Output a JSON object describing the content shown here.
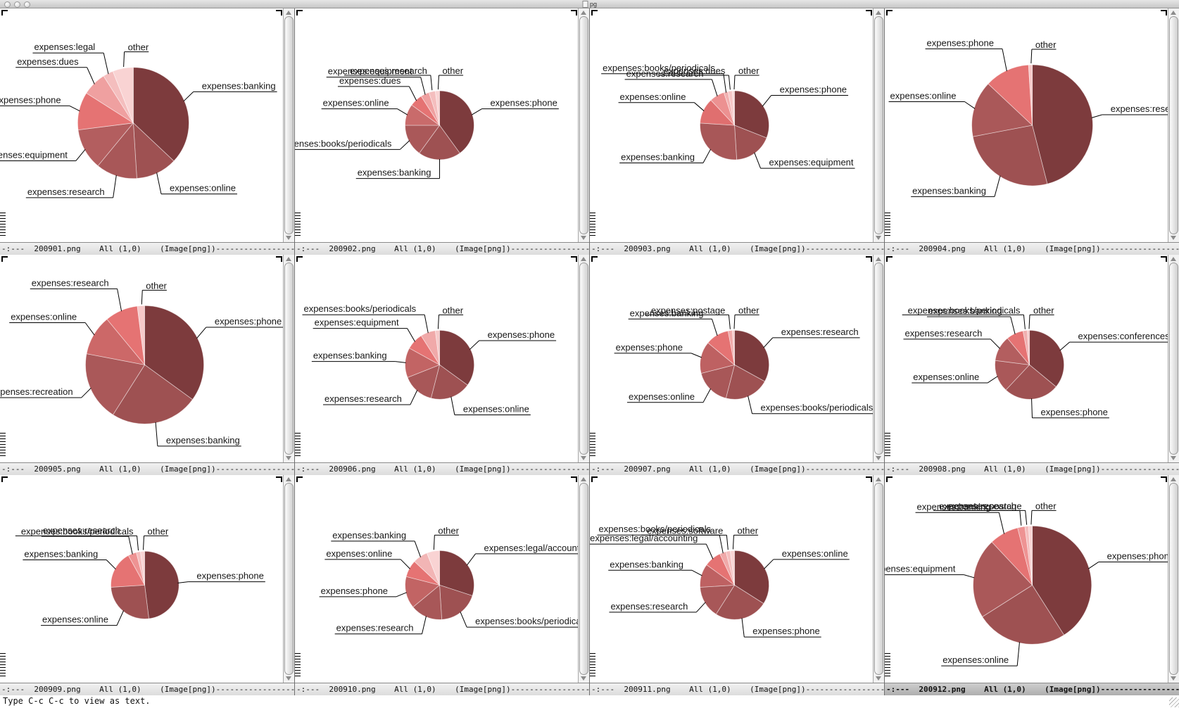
{
  "window": {
    "title": "pg"
  },
  "modeline": {
    "prefix": "-:---",
    "position": "All (1,0)",
    "mode": "(Image[png])",
    "dash_fill": "--------------------"
  },
  "minibuffer": {
    "message": "Type C-c C-c to view as text."
  },
  "icons": {
    "scrollbar_up": "triangle-up",
    "scrollbar_down": "triangle-down",
    "resize_grip": "diagonal-lines",
    "window_buttons": "gray-circles",
    "fringe_top": "corner-mark",
    "fringe_bottom": "dashed-ladder"
  },
  "panes": [
    {
      "file": "200901.png",
      "active": false
    },
    {
      "file": "200902.png",
      "active": false
    },
    {
      "file": "200903.png",
      "active": false
    },
    {
      "file": "200904.png",
      "active": false
    },
    {
      "file": "200905.png",
      "active": false
    },
    {
      "file": "200906.png",
      "active": false
    },
    {
      "file": "200907.png",
      "active": false
    },
    {
      "file": "200908.png",
      "active": false
    },
    {
      "file": "200909.png",
      "active": false
    },
    {
      "file": "200910.png",
      "active": false
    },
    {
      "file": "200911.png",
      "active": false
    },
    {
      "file": "200912.png",
      "active": true
    }
  ],
  "chart_data": [
    {
      "type": "pie",
      "title": "200901.png",
      "cx": 0.47,
      "cy": 0.49,
      "r": 79,
      "direction": "clockwise",
      "start": "top",
      "items": [
        {
          "label": "expenses:banking",
          "value": 37,
          "color": "#7D3B3D"
        },
        {
          "label": "expenses:online",
          "value": 12,
          "color": "#9E5152"
        },
        {
          "label": "expenses:research",
          "value": 12,
          "color": "#A85758"
        },
        {
          "label": "expenses:equipment",
          "value": 12,
          "color": "#B35E5F"
        },
        {
          "label": "expenses:phone",
          "value": 11,
          "color": "#E57373"
        },
        {
          "label": "expenses:dues",
          "value": 7,
          "color": "#EFA0A0"
        },
        {
          "label": "expenses:legal",
          "value": 3,
          "color": "#F4BEBE"
        },
        {
          "label": "other",
          "value": 6,
          "color": "#F9D3D3"
        }
      ]
    },
    {
      "type": "pie",
      "title": "200902.png",
      "cx": 0.51,
      "cy": 0.5,
      "r": 49,
      "direction": "clockwise",
      "start": "top",
      "items": [
        {
          "label": "expenses:phone",
          "value": 40,
          "color": "#7D3B3D"
        },
        {
          "label": "expenses:banking",
          "value": 20,
          "color": "#9E5152"
        },
        {
          "label": "expenses:books/periodicals",
          "value": 15,
          "color": "#AA5859"
        },
        {
          "label": "expenses:online",
          "value": 10,
          "color": "#C96B6B"
        },
        {
          "label": "expenses:dues",
          "value": 6,
          "color": "#E57373"
        },
        {
          "label": "expenses:equipment",
          "value": 4,
          "color": "#EFA0A0"
        },
        {
          "label": "expenses:research",
          "value": 3,
          "color": "#F4BEBE"
        },
        {
          "label": "other",
          "value": 2,
          "color": "#F9D3D3"
        }
      ]
    },
    {
      "type": "pie",
      "title": "200903.png",
      "cx": 0.51,
      "cy": 0.5,
      "r": 49,
      "direction": "clockwise",
      "start": "top",
      "items": [
        {
          "label": "expenses:phone",
          "value": 31,
          "color": "#7D3B3D"
        },
        {
          "label": "expenses:equipment",
          "value": 18,
          "color": "#9E5152"
        },
        {
          "label": "expenses:banking",
          "value": 27,
          "color": "#A85758"
        },
        {
          "label": "expenses:online",
          "value": 12,
          "color": "#E06F6F"
        },
        {
          "label": "expenses:research",
          "value": 7,
          "color": "#EC9191"
        },
        {
          "label": "expenses:books/periodicals",
          "value": 2,
          "color": "#F2B1B1"
        },
        {
          "label": "expenses:dues",
          "value": 2,
          "color": "#F6C6C6"
        },
        {
          "label": "other",
          "value": 1,
          "color": "#F9D6D6"
        }
      ]
    },
    {
      "type": "pie",
      "title": "200904.png",
      "cx": 0.52,
      "cy": 0.5,
      "r": 86,
      "direction": "clockwise",
      "start": "top",
      "items": [
        {
          "label": "expenses:research",
          "value": 46,
          "color": "#7D3B3D"
        },
        {
          "label": "expenses:banking",
          "value": 26,
          "color": "#9E5152"
        },
        {
          "label": "expenses:online",
          "value": 15,
          "color": "#AA5859"
        },
        {
          "label": "expenses:phone",
          "value": 12,
          "color": "#E57373"
        },
        {
          "label": "other",
          "value": 1,
          "color": "#F6C9C9"
        }
      ]
    },
    {
      "type": "pie",
      "title": "200905.png",
      "cx": 0.51,
      "cy": 0.53,
      "r": 84,
      "direction": "clockwise",
      "start": "top",
      "items": [
        {
          "label": "expenses:phone",
          "value": 35,
          "color": "#7D3B3D"
        },
        {
          "label": "expenses:banking",
          "value": 24,
          "color": "#9E5152"
        },
        {
          "label": "expenses:recreation",
          "value": 19,
          "color": "#AA5859"
        },
        {
          "label": "expenses:online",
          "value": 11,
          "color": "#CC6868"
        },
        {
          "label": "expenses:research",
          "value": 9,
          "color": "#E57373"
        },
        {
          "label": "other",
          "value": 2,
          "color": "#F6C9C9"
        }
      ]
    },
    {
      "type": "pie",
      "title": "200906.png",
      "cx": 0.51,
      "cy": 0.53,
      "r": 49,
      "direction": "clockwise",
      "start": "top",
      "items": [
        {
          "label": "expenses:phone",
          "value": 35,
          "color": "#7D3B3D"
        },
        {
          "label": "expenses:online",
          "value": 19,
          "color": "#9E5152"
        },
        {
          "label": "expenses:research",
          "value": 15,
          "color": "#A85758"
        },
        {
          "label": "expenses:banking",
          "value": 14,
          "color": "#C26464"
        },
        {
          "label": "expenses:equipment",
          "value": 8,
          "color": "#E57373"
        },
        {
          "label": "expenses:books/periodicals",
          "value": 7,
          "color": "#F0A9A9"
        },
        {
          "label": "other",
          "value": 2,
          "color": "#F6C9C9"
        }
      ]
    },
    {
      "type": "pie",
      "title": "200907.png",
      "cx": 0.51,
      "cy": 0.53,
      "r": 49,
      "direction": "clockwise",
      "start": "top",
      "items": [
        {
          "label": "expenses:research",
          "value": 33,
          "color": "#7D3B3D"
        },
        {
          "label": "expenses:books/periodicals",
          "value": 21,
          "color": "#9E5152"
        },
        {
          "label": "expenses:online",
          "value": 17,
          "color": "#A85758"
        },
        {
          "label": "expenses:phone",
          "value": 15,
          "color": "#BE6162"
        },
        {
          "label": "expenses:banking",
          "value": 11,
          "color": "#E57373"
        },
        {
          "label": "expenses:postage",
          "value": 2,
          "color": "#F0A9A9"
        },
        {
          "label": "other",
          "value": 1,
          "color": "#F6C9C9"
        }
      ]
    },
    {
      "type": "pie",
      "title": "200908.png",
      "cx": 0.51,
      "cy": 0.53,
      "r": 49,
      "direction": "clockwise",
      "start": "top",
      "items": [
        {
          "label": "expenses:conferences",
          "value": 36,
          "color": "#7D3B3D"
        },
        {
          "label": "expenses:phone",
          "value": 26,
          "color": "#9E5152"
        },
        {
          "label": "expenses:online",
          "value": 15,
          "color": "#AA5859"
        },
        {
          "label": "expenses:research",
          "value": 12,
          "color": "#B35E5F"
        },
        {
          "label": "expenses:banking",
          "value": 8,
          "color": "#E57373"
        },
        {
          "label": "expenses:books/periodicals",
          "value": 2,
          "color": "#F0B0B0"
        },
        {
          "label": "other",
          "value": 1,
          "color": "#F6C9C9"
        }
      ]
    },
    {
      "type": "pie",
      "title": "200909.png",
      "cx": 0.51,
      "cy": 0.53,
      "r": 48,
      "direction": "clockwise",
      "start": "top",
      "items": [
        {
          "label": "expenses:phone",
          "value": 48,
          "color": "#7D3B3D"
        },
        {
          "label": "expenses:online",
          "value": 26,
          "color": "#9E5152"
        },
        {
          "label": "expenses:banking",
          "value": 18,
          "color": "#E57373"
        },
        {
          "label": "expenses:research",
          "value": 4,
          "color": "#EE9393"
        },
        {
          "label": "expenses:books/periodicals",
          "value": 2,
          "color": "#F4BEBE"
        },
        {
          "label": "other",
          "value": 2,
          "color": "#F9D3D3"
        }
      ]
    },
    {
      "type": "pie",
      "title": "200910.png",
      "cx": 0.51,
      "cy": 0.53,
      "r": 49,
      "direction": "clockwise",
      "start": "top",
      "items": [
        {
          "label": "expenses:legal/accounting",
          "value": 30,
          "color": "#7D3B3D"
        },
        {
          "label": "expenses:books/periodicals",
          "value": 19,
          "color": "#9E5152"
        },
        {
          "label": "expenses:research",
          "value": 15,
          "color": "#A85758"
        },
        {
          "label": "expenses:phone",
          "value": 15,
          "color": "#C26464"
        },
        {
          "label": "expenses:online",
          "value": 8,
          "color": "#E57373"
        },
        {
          "label": "expenses:banking",
          "value": 7,
          "color": "#F2B5B5"
        },
        {
          "label": "other",
          "value": 6,
          "color": "#F9D3D3"
        }
      ]
    },
    {
      "type": "pie",
      "title": "200911.png",
      "cx": 0.51,
      "cy": 0.53,
      "r": 49,
      "direction": "clockwise",
      "start": "top",
      "items": [
        {
          "label": "expenses:online",
          "value": 34,
          "color": "#7D3B3D"
        },
        {
          "label": "expenses:phone",
          "value": 25,
          "color": "#9E5152"
        },
        {
          "label": "expenses:research",
          "value": 15,
          "color": "#A85758"
        },
        {
          "label": "expenses:banking",
          "value": 11,
          "color": "#BE6162"
        },
        {
          "label": "expenses:legal/accounting",
          "value": 8,
          "color": "#E57373"
        },
        {
          "label": "expenses:books/periodicals",
          "value": 3,
          "color": "#F0A9A9"
        },
        {
          "label": "expenses:software",
          "value": 2,
          "color": "#F4BEBE"
        },
        {
          "label": "other",
          "value": 2,
          "color": "#F9D3D3"
        }
      ]
    },
    {
      "type": "pie",
      "title": "200912.png",
      "cx": 0.52,
      "cy": 0.53,
      "r": 84,
      "direction": "clockwise",
      "start": "top",
      "items": [
        {
          "label": "expenses:phone",
          "value": 41,
          "color": "#7D3B3D"
        },
        {
          "label": "expenses:online",
          "value": 25,
          "color": "#9E5152"
        },
        {
          "label": "expenses:equipment",
          "value": 22,
          "color": "#AA5859"
        },
        {
          "label": "expenses:banking",
          "value": 8,
          "color": "#E57373"
        },
        {
          "label": "expenses:research",
          "value": 2,
          "color": "#EE9393"
        },
        {
          "label": "expenses:postage",
          "value": 1,
          "color": "#F4BEBE"
        },
        {
          "label": "other",
          "value": 1,
          "color": "#F9D3D3"
        }
      ]
    }
  ]
}
